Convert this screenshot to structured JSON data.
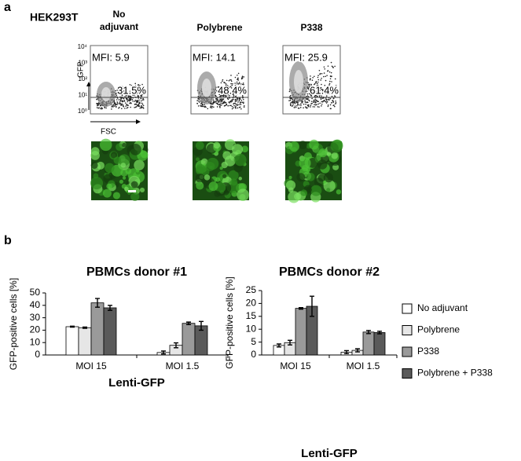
{
  "panel_a": {
    "label": "a",
    "cell_line": "HEK293T",
    "conditions": [
      {
        "name": "No adjuvant",
        "mfi": "MFI: 5.9",
        "percent": "31.5%"
      },
      {
        "name": "Polybrene",
        "mfi": "MFI: 14.1",
        "percent": "48.4%"
      },
      {
        "name": "P338",
        "mfi": "MFI: 25.9",
        "percent": "61.4%"
      }
    ],
    "y_axis_label": "GFP",
    "x_axis_label": "FSC",
    "y_tick_labels": [
      "10⁴",
      "10³",
      "10²",
      "10¹",
      "10⁰"
    ]
  },
  "panel_b": {
    "label": "b"
  },
  "chart_data": [
    {
      "type": "bar",
      "title": "PBMCs donor #1",
      "xlabel": "Lenti-GFP",
      "ylabel": "GFP-positive cells [%]",
      "categories": [
        "MOI 15",
        "MOI 1.5"
      ],
      "ylim": [
        0,
        50
      ],
      "yticks": [
        0,
        10,
        20,
        30,
        40,
        50
      ],
      "series": [
        {
          "color": "#ffffff",
          "values": [
            22.8,
            2
          ],
          "errors": [
            0.4,
            1.2
          ]
        },
        {
          "color": "#e6e6e6",
          "values": [
            22,
            7.8
          ],
          "errors": [
            0.5,
            2
          ]
        },
        {
          "color": "#9a9a9a",
          "values": [
            42,
            25.5
          ],
          "errors": [
            3.5,
            1
          ]
        },
        {
          "color": "#5a5a5a",
          "values": [
            38,
            23.5
          ],
          "errors": [
            2,
            3.5
          ]
        }
      ]
    },
    {
      "type": "bar",
      "title": "PBMCs donor #2",
      "xlabel": "Lenti-GFP",
      "ylabel": "GFP-positive cells [%]",
      "categories": [
        "MOI 15",
        "MOI 1.5"
      ],
      "ylim": [
        0,
        25
      ],
      "yticks": [
        0,
        5,
        10,
        15,
        20,
        25
      ],
      "legend": "right",
      "series": [
        {
          "name": "No adjuvant",
          "color": "#ffffff",
          "values": [
            3.7,
            1.1
          ],
          "errors": [
            0.6,
            0.6
          ]
        },
        {
          "name": "Polybrene",
          "color": "#e6e6e6",
          "values": [
            4.8,
            1.8
          ],
          "errors": [
            0.9,
            0.6
          ]
        },
        {
          "name": "P338",
          "color": "#9a9a9a",
          "values": [
            18.1,
            8.9
          ],
          "errors": [
            0.3,
            0.6
          ]
        },
        {
          "name": "Polybrene + P338",
          "color": "#5a5a5a",
          "values": [
            18.9,
            8.7
          ],
          "errors": [
            3.9,
            0.5
          ]
        }
      ]
    }
  ]
}
